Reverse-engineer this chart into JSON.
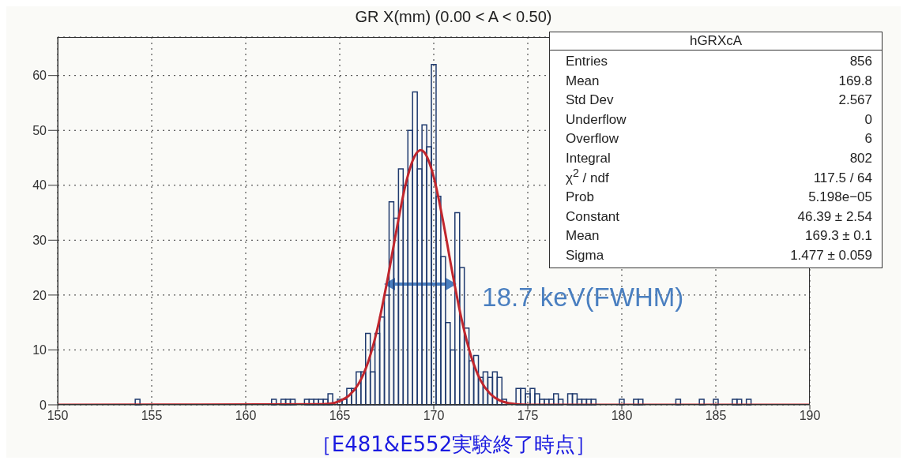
{
  "chart_data": {
    "type": "histogram",
    "title": "GR X(mm) (0.00 < A < 0.50)",
    "xlim": [
      150,
      190
    ],
    "xticks": [
      150,
      155,
      160,
      165,
      170,
      175,
      180,
      185,
      190
    ],
    "ylim": [
      0,
      67
    ],
    "yticks": [
      0,
      10,
      20,
      30,
      40,
      50,
      60
    ],
    "grid": true,
    "series": [
      {
        "color": "#1f3a6e",
        "bins": [
          154.125,
          154.375,
          154.625,
          154.875,
          155.125,
          155.375,
          155.625,
          155.875,
          156.125,
          156.375,
          156.625,
          156.875,
          157.125,
          157.375,
          157.625,
          157.875,
          158.125,
          158.375,
          158.625,
          158.875,
          159.125,
          159.375,
          159.625,
          159.875,
          160.125,
          160.375,
          160.625,
          160.875,
          161.125,
          161.375,
          161.625,
          161.875,
          162.125,
          162.375,
          162.625,
          162.875,
          163.125,
          163.375,
          163.625,
          163.875,
          164.125,
          164.375,
          164.625,
          164.875,
          165.125,
          165.375,
          165.625,
          165.875,
          166.125,
          166.375,
          166.625,
          166.875,
          167.125,
          167.375,
          167.625,
          167.875,
          168.125,
          168.375,
          168.625,
          168.875,
          169.125,
          169.375,
          169.625,
          169.875,
          170.125,
          170.375,
          170.625,
          170.875,
          171.125,
          171.375,
          171.625,
          171.875,
          172.125,
          172.375,
          172.625,
          172.875,
          173.125,
          173.375,
          173.625,
          173.875,
          174.125,
          174.375,
          174.625,
          174.875,
          175.125,
          175.375,
          175.625,
          175.875,
          176.125,
          176.375,
          176.625,
          176.875,
          177.125,
          177.375,
          177.625,
          177.875,
          178.125,
          178.375,
          178.625,
          178.875,
          179.125,
          179.375,
          179.625,
          179.875,
          180.125,
          180.375,
          180.625,
          180.875,
          181.125,
          181.375,
          181.625,
          181.875,
          182.125,
          182.375,
          182.625,
          182.875,
          183.125,
          183.375,
          183.625,
          183.875,
          184.125,
          184.375,
          184.625,
          184.875,
          185.125,
          185.375,
          185.625,
          185.875,
          186.125,
          186.375,
          186.625,
          186.875
        ],
        "values": [
          1,
          0,
          0,
          0,
          0,
          0,
          0,
          0,
          0,
          0,
          0,
          0,
          0,
          0,
          0,
          0,
          0,
          0,
          0,
          0,
          0,
          0,
          0,
          0,
          0,
          0,
          0,
          0,
          0,
          1,
          0,
          1,
          1,
          1,
          0,
          0,
          1,
          1,
          1,
          1,
          1,
          2,
          0,
          1,
          1,
          3,
          3,
          6,
          6,
          13,
          6,
          13,
          16,
          20,
          37,
          34,
          43,
          40,
          50,
          57,
          43,
          51,
          47,
          62,
          38,
          27,
          15,
          10,
          35,
          25,
          14,
          8,
          9,
          5,
          6,
          5,
          6,
          5,
          1,
          0,
          0,
          3,
          3,
          2,
          3,
          2,
          1,
          1,
          1,
          2,
          1,
          0,
          2,
          2,
          1,
          1,
          1,
          1,
          0,
          0,
          0,
          0,
          0,
          1,
          0,
          0,
          1,
          1,
          0,
          0,
          0,
          0,
          0,
          0,
          0,
          1,
          0,
          0,
          0,
          0,
          1,
          0,
          0,
          1,
          0,
          0,
          0,
          1,
          1,
          0,
          1
        ]
      },
      {
        "type": "line",
        "color": "#c0262d",
        "x": [
          150,
          164,
          164.5,
          165,
          165.5,
          166,
          166.5,
          167,
          167.5,
          168,
          168.5,
          169,
          169.3,
          169.5,
          170,
          170.5,
          171,
          171.5,
          172,
          172.5,
          173,
          173.5,
          174,
          175,
          190
        ],
        "values": [
          0,
          0.1,
          0.2,
          0.7,
          1.7,
          3.8,
          7.7,
          13.8,
          22.1,
          31.5,
          40.1,
          45.4,
          46.4,
          46.0,
          41.5,
          33.4,
          23.9,
          15.3,
          8.7,
          4.4,
          2.0,
          0.8,
          0.3,
          0,
          0
        ]
      }
    ],
    "annotations": [
      {
        "text": "18.7 keV(FWHM)",
        "x": 169.3,
        "y": 22
      },
      "hGRXcA",
      "Entries",
      "856",
      "Mean",
      "169.8",
      "Std Dev",
      "2.567",
      "Underflow",
      "0",
      "Overflow",
      "6",
      "Integral",
      "802",
      "χ$^{2}$ / ndf",
      "117.5 / 64",
      "Prob",
      "5.198e−05",
      "Constant",
      "46.39 ± 2.54",
      "Mean",
      "169.3 ± 0.1",
      "Sigma",
      "1.477 ± 0.059",
      "［E481&E552実験終了時点］"
    ]
  }
}
